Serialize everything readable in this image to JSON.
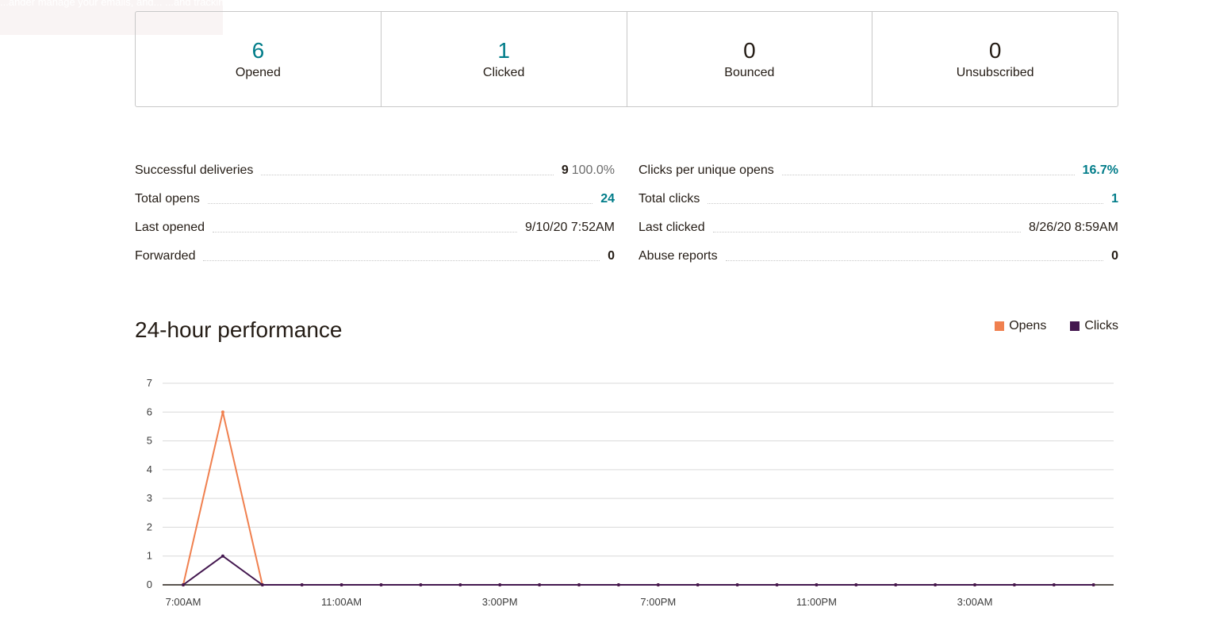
{
  "toast": {
    "text": "...ander manage your emails, and... ...and tracking engage..."
  },
  "summary": [
    {
      "value": "6",
      "label": "Opened",
      "link": true
    },
    {
      "value": "1",
      "label": "Clicked",
      "link": true
    },
    {
      "value": "0",
      "label": "Bounced",
      "link": false
    },
    {
      "value": "0",
      "label": "Unsubscribed",
      "link": false
    }
  ],
  "metrics_left": [
    {
      "label": "Successful deliveries",
      "value": "9",
      "extra": "100.0%"
    },
    {
      "label": "Total opens",
      "value": "24",
      "link": true
    },
    {
      "label": "Last opened",
      "value": "9/10/20 7:52AM",
      "plain": true
    },
    {
      "label": "Forwarded",
      "value": "0"
    }
  ],
  "metrics_right": [
    {
      "label": "Clicks per unique opens",
      "value": "16.7%",
      "link": true
    },
    {
      "label": "Total clicks",
      "value": "1",
      "link": true
    },
    {
      "label": "Last clicked",
      "value": "8/26/20 8:59AM",
      "plain": true
    },
    {
      "label": "Abuse reports",
      "value": "0"
    }
  ],
  "performance": {
    "title": "24-hour performance",
    "legend": [
      {
        "name": "Opens",
        "color": "#f0804f"
      },
      {
        "name": "Clicks",
        "color": "#43174f"
      }
    ]
  },
  "chart_data": {
    "type": "line",
    "x": [
      "7:00AM",
      "8:00AM",
      "9:00AM",
      "10:00AM",
      "11:00AM",
      "12:00PM",
      "1:00PM",
      "2:00PM",
      "3:00PM",
      "4:00PM",
      "5:00PM",
      "6:00PM",
      "7:00PM",
      "8:00PM",
      "9:00PM",
      "10:00PM",
      "11:00PM",
      "12:00AM",
      "1:00AM",
      "2:00AM",
      "3:00AM",
      "4:00AM",
      "5:00AM",
      "6:00AM"
    ],
    "tick_labels": [
      "7:00AM",
      "11:00AM",
      "3:00PM",
      "7:00PM",
      "11:00PM",
      "3:00AM"
    ],
    "series": [
      {
        "name": "Opens",
        "color": "#f0804f",
        "values": [
          0,
          6,
          0,
          0,
          0,
          0,
          0,
          0,
          0,
          0,
          0,
          0,
          0,
          0,
          0,
          0,
          0,
          0,
          0,
          0,
          0,
          0,
          0,
          0
        ]
      },
      {
        "name": "Clicks",
        "color": "#43174f",
        "values": [
          0,
          1,
          0,
          0,
          0,
          0,
          0,
          0,
          0,
          0,
          0,
          0,
          0,
          0,
          0,
          0,
          0,
          0,
          0,
          0,
          0,
          0,
          0,
          0
        ]
      }
    ],
    "ylim": [
      0,
      7
    ],
    "yticks": [
      0,
      1,
      2,
      3,
      4,
      5,
      6,
      7
    ],
    "grid": true,
    "legend": "top-right"
  }
}
